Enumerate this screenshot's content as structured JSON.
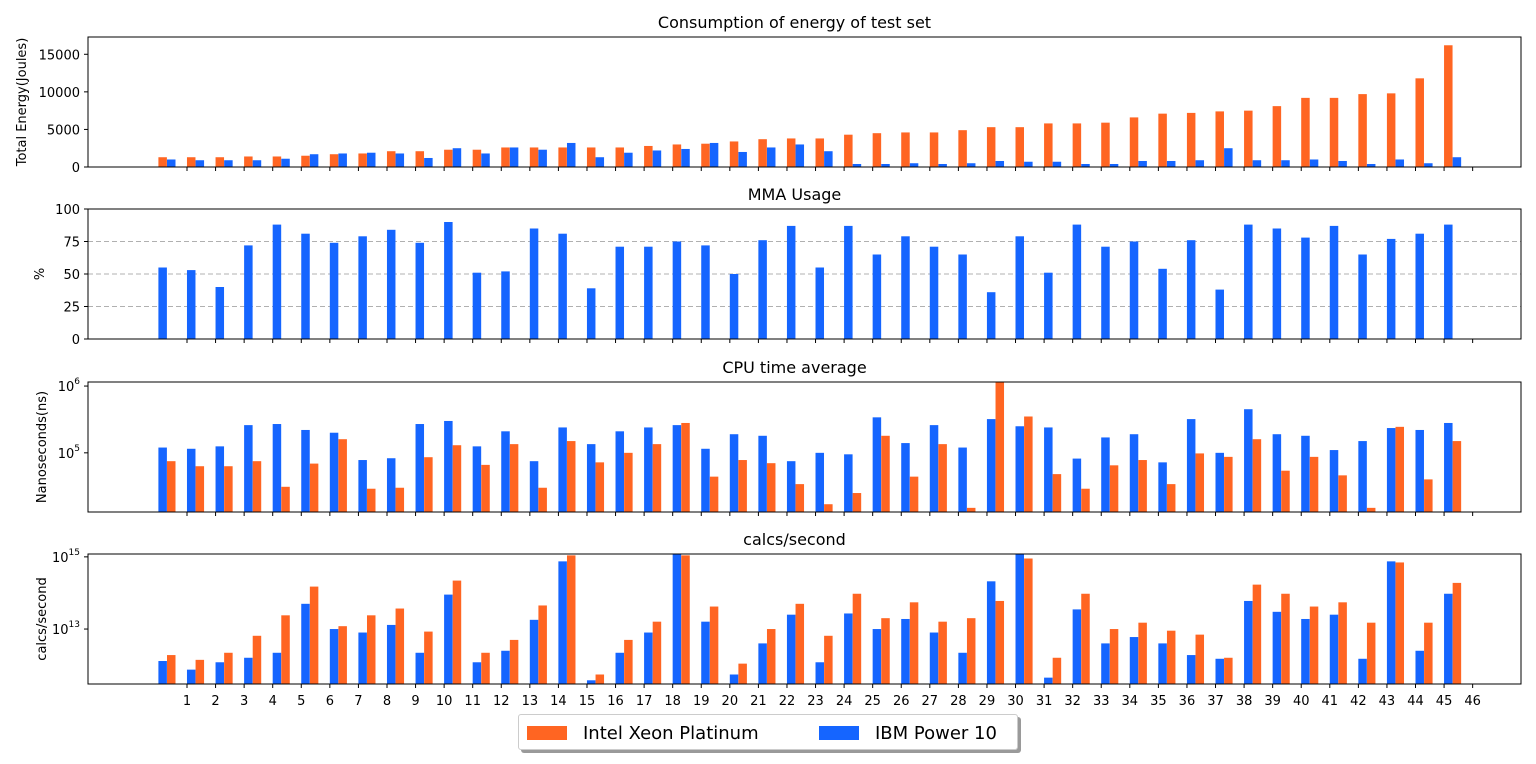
{
  "colors": {
    "intel": "#ff6522",
    "ibm": "#1565ff",
    "grid": "#b0b0b0"
  },
  "legend": {
    "intel_label": "Intel Xeon Platinum",
    "ibm_label": "IBM Power 10"
  },
  "chart_data": [
    {
      "type": "bar",
      "title": "Consumption of energy of test set",
      "ylabel": "Total Energy(Joules)",
      "xlabel": "",
      "scale": "linear",
      "ylim": [
        0,
        17300
      ],
      "yticks": [
        0,
        5000,
        10000,
        15000
      ],
      "ytick_labels": [
        "0",
        "5000",
        "10000",
        "15000"
      ],
      "grid": false,
      "show_xlabels": false,
      "categories": [
        "1",
        "2",
        "3",
        "4",
        "5",
        "6",
        "7",
        "8",
        "9",
        "10",
        "11",
        "12",
        "13",
        "14",
        "15",
        "16",
        "17",
        "18",
        "19",
        "20",
        "21",
        "22",
        "23",
        "24",
        "25",
        "26",
        "27",
        "28",
        "29",
        "30",
        "31",
        "32",
        "33",
        "34",
        "35",
        "36",
        "37",
        "38",
        "39",
        "40",
        "41",
        "42",
        "43",
        "44",
        "45",
        "46"
      ],
      "series": [
        {
          "name": "Intel Xeon Platinum",
          "values": [
            1300,
            1300,
            1300,
            1400,
            1400,
            1500,
            1700,
            1800,
            2100,
            2100,
            2300,
            2300,
            2600,
            2600,
            2600,
            2600,
            2600,
            2800,
            3000,
            3100,
            3400,
            3700,
            3800,
            3800,
            4300,
            4500,
            4600,
            4600,
            4900,
            5300,
            5300,
            5800,
            5800,
            5900,
            6600,
            7100,
            7200,
            7400,
            7500,
            8100,
            9200,
            9200,
            9700,
            9800,
            11800,
            16200
          ]
        },
        {
          "name": "IBM Power 10",
          "values": [
            1000,
            900,
            900,
            900,
            1100,
            1700,
            1800,
            1900,
            1800,
            1200,
            2500,
            1800,
            2600,
            2300,
            3200,
            1300,
            1900,
            2200,
            2400,
            3200,
            2000,
            2600,
            3000,
            2100,
            400,
            400,
            500,
            400,
            500,
            800,
            700,
            700,
            400,
            400,
            800,
            800,
            900,
            2500,
            900,
            900,
            1000,
            800,
            400,
            1000,
            500,
            1300
          ]
        }
      ]
    },
    {
      "type": "bar",
      "title": "MMA Usage",
      "ylabel": "%",
      "xlabel": "",
      "scale": "linear",
      "ylim": [
        0,
        100
      ],
      "yticks": [
        0,
        25,
        50,
        75,
        100
      ],
      "ytick_labels": [
        "0",
        "25",
        "50",
        "75",
        "100"
      ],
      "grid": true,
      "show_xlabels": false,
      "categories": [
        "1",
        "2",
        "3",
        "4",
        "5",
        "6",
        "7",
        "8",
        "9",
        "10",
        "11",
        "12",
        "13",
        "14",
        "15",
        "16",
        "17",
        "18",
        "19",
        "20",
        "21",
        "22",
        "23",
        "24",
        "25",
        "26",
        "27",
        "28",
        "29",
        "30",
        "31",
        "32",
        "33",
        "34",
        "35",
        "36",
        "37",
        "38",
        "39",
        "40",
        "41",
        "42",
        "43",
        "44",
        "45",
        "46"
      ],
      "series": [
        {
          "name": "IBM Power 10",
          "values": [
            55,
            53,
            40,
            72,
            88,
            81,
            74,
            79,
            84,
            74,
            90,
            51,
            52,
            85,
            81,
            39,
            71,
            71,
            75,
            72,
            50,
            76,
            87,
            55,
            87,
            65,
            79,
            71,
            65,
            36,
            79,
            51,
            88,
            71,
            75,
            54,
            76,
            38,
            88,
            85,
            78,
            87,
            65,
            77,
            81,
            88
          ]
        }
      ]
    },
    {
      "type": "bar",
      "title": "CPU time average",
      "ylabel": "Nanoseconds(ns)",
      "xlabel": "",
      "scale": "log",
      "ylim": [
        13000,
        1150000
      ],
      "yticks": [
        100000,
        1000000
      ],
      "ytick_labels": [
        "10^5",
        "10^6"
      ],
      "grid": false,
      "show_xlabels": false,
      "categories": [
        "1",
        "2",
        "3",
        "4",
        "5",
        "6",
        "7",
        "8",
        "9",
        "10",
        "11",
        "12",
        "13",
        "14",
        "15",
        "16",
        "17",
        "18",
        "19",
        "20",
        "21",
        "22",
        "23",
        "24",
        "25",
        "26",
        "27",
        "28",
        "29",
        "30",
        "31",
        "32",
        "33",
        "34",
        "35",
        "36",
        "37",
        "38",
        "39",
        "40",
        "41",
        "42",
        "43",
        "44",
        "45",
        "46"
      ],
      "series": [
        {
          "name": "IBM Power 10",
          "values": [
            120000,
            115000,
            125000,
            260000,
            270000,
            220000,
            200000,
            78000,
            83000,
            270000,
            300000,
            125000,
            210000,
            75000,
            240000,
            135000,
            210000,
            240000,
            260000,
            115000,
            190000,
            180000,
            75000,
            100000,
            95000,
            340000,
            140000,
            260000,
            120000,
            320000,
            250000,
            240000,
            82000,
            170000,
            190000,
            72000,
            320000,
            100000,
            450000,
            190000,
            180000,
            110000,
            150000,
            235000,
            220000,
            280000
          ]
        },
        {
          "name": "Intel Xeon Platinum",
          "values": [
            75000,
            63000,
            63000,
            75000,
            31000,
            69000,
            160000,
            29000,
            30000,
            86000,
            130000,
            66000,
            135000,
            30000,
            150000,
            72000,
            100000,
            135000,
            280000,
            44000,
            78000,
            70000,
            34000,
            17000,
            25000,
            180000,
            44000,
            135000,
            15000,
            1150000,
            350000,
            48000,
            29000,
            65000,
            78000,
            34000,
            98000,
            87000,
            160000,
            54000,
            87000,
            46000,
            15000,
            245000,
            40000,
            150000
          ]
        }
      ]
    },
    {
      "type": "bar",
      "title": "calcs/second",
      "ylabel": "calcs/second",
      "xlabel": "",
      "scale": "log",
      "ylim": [
        300000000000,
        1200000000000000
      ],
      "yticks": [
        10000000000000,
        1000000000000000
      ],
      "ytick_labels": [
        "10^13",
        "10^15"
      ],
      "grid": false,
      "show_xlabels": true,
      "categories": [
        "1",
        "2",
        "3",
        "4",
        "5",
        "6",
        "7",
        "8",
        "9",
        "10",
        "11",
        "12",
        "13",
        "14",
        "15",
        "16",
        "17",
        "18",
        "19",
        "20",
        "21",
        "22",
        "23",
        "24",
        "25",
        "26",
        "27",
        "28",
        "29",
        "30",
        "31",
        "32",
        "33",
        "34",
        "35",
        "36",
        "37",
        "38",
        "39",
        "40",
        "41",
        "42",
        "43",
        "44",
        "45",
        "46"
      ],
      "series": [
        {
          "name": "IBM Power 10",
          "values": [
            1300000000000,
            750000000000,
            1200000000000,
            1600000000000,
            2200000000000,
            50000000000000,
            10000000000000,
            8000000000000,
            13000000000000,
            2200000000000,
            90000000000000,
            1200000000000,
            2500000000000,
            18000000000000,
            750000000000000,
            380000000000,
            2200000000000,
            8000000000000,
            1200000000000000,
            16000000000000,
            550000000000,
            4000000000000,
            25000000000000,
            1200000000000,
            27000000000000,
            10000000000000,
            19000000000000,
            8000000000000,
            2200000000000,
            210000000000000,
            1200000000000000,
            450000000000,
            35000000000000,
            4000000000000,
            6000000000000,
            4000000000000,
            1900000000000,
            1500000000000,
            60000000000000,
            30000000000000,
            19000000000000,
            25000000000000,
            1500000000000,
            750000000000000,
            2500000000000,
            95000000000000
          ]
        },
        {
          "name": "Intel Xeon Platinum",
          "values": [
            1900000000000,
            1400000000000,
            2200000000000,
            6500000000000,
            24000000000000,
            150000000000000,
            12000000000000,
            24000000000000,
            37000000000000,
            8500000000000,
            220000000000000,
            2200000000000,
            5000000000000,
            45000000000000,
            1100000000000000,
            550000000000,
            5000000000000,
            16000000000000,
            1100000000000000,
            42000000000000,
            1100000000000,
            10000000000000,
            50000000000000,
            6500000000000,
            95000000000000,
            20000000000000,
            55000000000000,
            16000000000000,
            20000000000000,
            60000000000000,
            900000000000000,
            1600000000000,
            95000000000000,
            10000000000000,
            15000000000000,
            9000000000000,
            7000000000000,
            1600000000000,
            170000000000000,
            95000000000000,
            42000000000000,
            55000000000000,
            15000000000000,
            700000000000000,
            15000000000000,
            190000000000000
          ]
        }
      ]
    }
  ]
}
